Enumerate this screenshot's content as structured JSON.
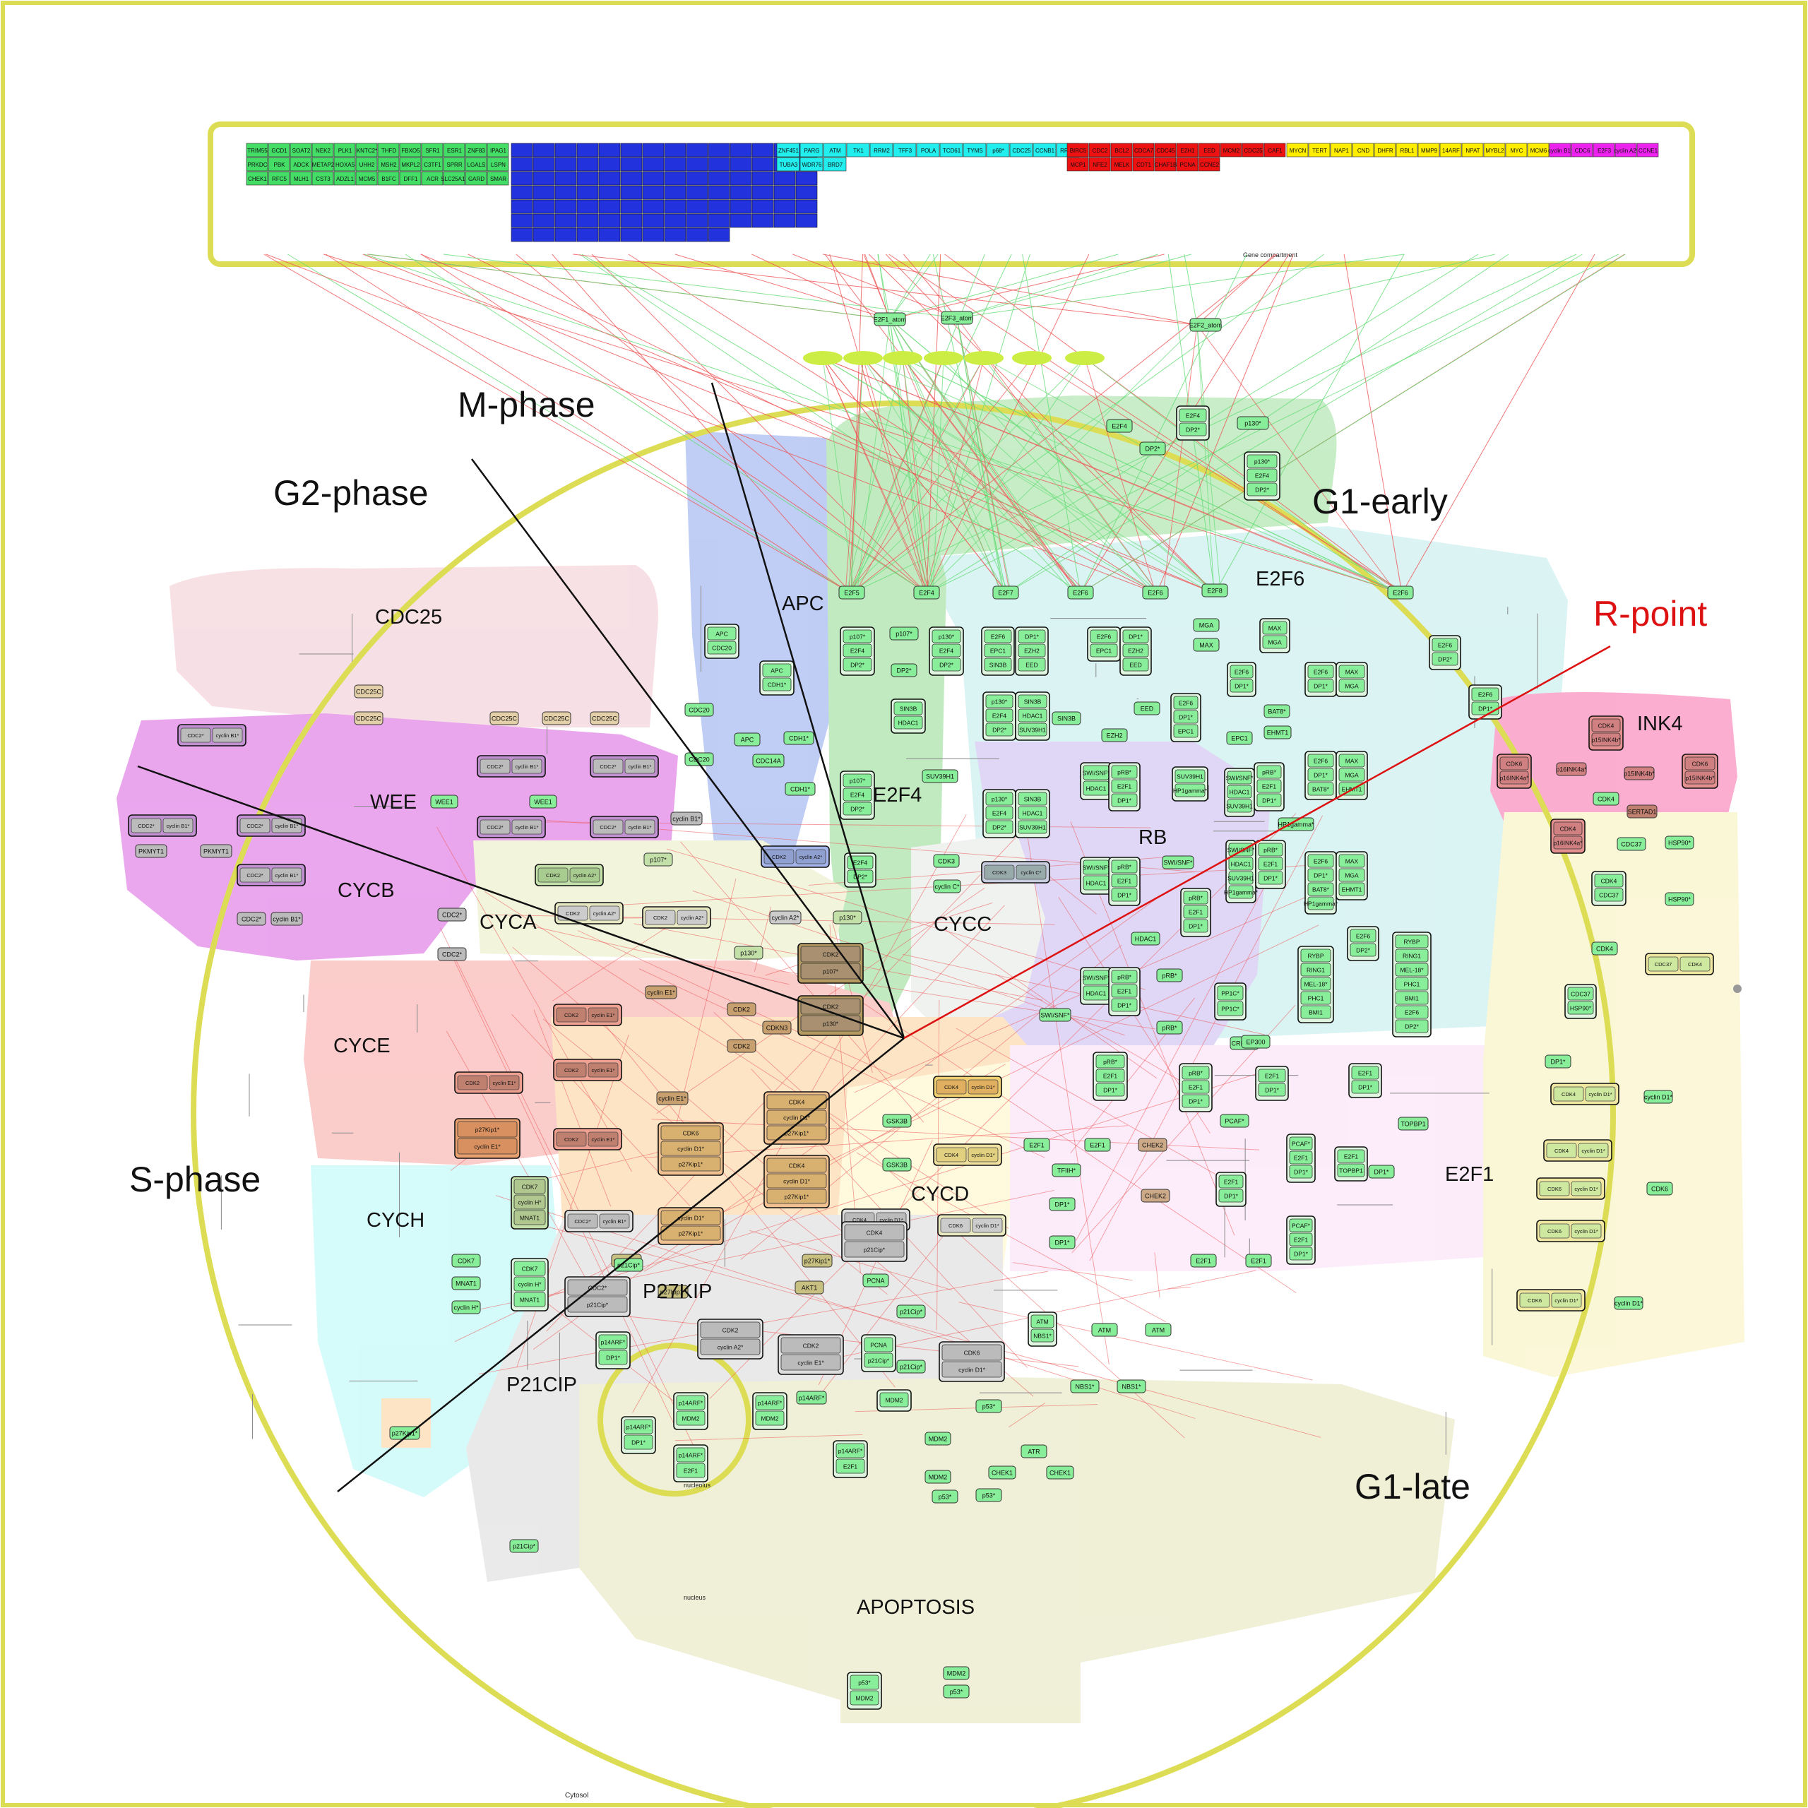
{
  "title": "",
  "compartments": {
    "gene": "Gene compartment",
    "cytosol": "Cytosol",
    "nucleus": "nucleus",
    "nucleolus": "nucleolus"
  },
  "phases": {
    "m_phase": "M-phase",
    "g2_phase": "G2-phase",
    "g1_early": "G1-early",
    "r_point": "R-point",
    "s_phase": "S-phase",
    "g1_late": "G1-late"
  },
  "modules": {
    "cdc25": "CDC25",
    "apc": "APC",
    "e2f6": "E2F6",
    "ink4": "INK4",
    "wee": "WEE",
    "e2f4": "E2F4",
    "rb": "RB",
    "cycb": "CYCB",
    "cyca": "CYCA",
    "cycc": "CYCC",
    "cyce": "CYCE",
    "cycd": "CYCD",
    "e2f1": "E2F1",
    "cych": "CYCH",
    "p27kip": "P27KIP",
    "p21cip": "P21CIP",
    "apoptosis": "APOPTOSIS"
  },
  "gene_rows": {
    "green": [
      "TRIM55",
      "GCD1",
      "SOAT2",
      "NEK2",
      "PLK1",
      "KNTC2*",
      "THFD",
      "FBXO5",
      "SFR1",
      "ESR1",
      "ZNF83",
      "IPAG1",
      "PRKDC",
      "PBK",
      "ADCK",
      "METAP2",
      "HOXA5",
      "UHH2",
      "MSH2",
      "MKPL2",
      "C3TF1",
      "SPRR",
      "LGALS",
      "LSPN",
      "CHEK1",
      "RFC5",
      "MLH1",
      "CST3",
      "ADZL1",
      "MCM5",
      "B1FC",
      "DFF1",
      "ACR",
      "SLC25A16",
      "GARD",
      "SMAR"
    ],
    "cyan": [
      "ZNF451",
      "PARG",
      "ATM",
      "TK1",
      "RRM2",
      "TFF3",
      "POLA",
      "TCD61",
      "TYMS",
      "p68*",
      "CDC25",
      "CCNB1",
      "RRM1",
      "TUBA3",
      "WDR76",
      "BRD7"
    ],
    "red": [
      "BIRC5",
      "CDC2",
      "BCL2",
      "CDCA7",
      "CDC45",
      "E2H1",
      "EED",
      "MCM2",
      "CDC25",
      "CAF1",
      "MCP1",
      "NFE2",
      "MELK",
      "CDT1",
      "CHAF1B",
      "PCNA",
      "CCNE2"
    ],
    "yellow": [
      "MYCN",
      "TERT",
      "NAP1",
      "CND",
      "DHFR",
      "RBL1",
      "MMP9",
      "14ARF",
      "NPAT",
      "MYBL2",
      "MYC",
      "MCM6"
    ],
    "magenta": [
      "cyclin B1*",
      "CDC6",
      "E2F3",
      "cyclin A2*",
      "CCNE1"
    ]
  },
  "nodes": {
    "e2f1_atom": "E2F1_atom",
    "e2f3_atom": "E2F3_atom",
    "e2f2_atom": "E2F2_atom",
    "e2f5": "E2F5",
    "e2f4": "E2F4",
    "e2f7": "E2F7",
    "e2f6": "E2F6",
    "e2f8": "E2F8",
    "dp2": "DP2*",
    "p130": "p130*",
    "p107": "p107*",
    "mga": "MGA",
    "max": "MAX",
    "apc": "APC",
    "cdc20": "CDC20",
    "cdh1": "CDH1*",
    "cdc14a": "CDC14A",
    "cdc25c": "CDC25C",
    "cdc2": "CDC2*",
    "cyclin_b1": "cyclin B1*",
    "wee1": "WEE1",
    "pkmyt1": "PKMYT1",
    "cdk2": "CDK2",
    "cyclin_a2": "cyclin A2*",
    "cyclin_e1": "cyclin E1*",
    "cdk3": "CDK3",
    "cyclin_c": "cyclin C*",
    "cdk4": "CDK4",
    "cdk6": "CDK6",
    "cyclin_d1": "cyclin D1*",
    "cdk7": "CDK7",
    "cyclin_h": "cyclin H*",
    "mnat1": "MNAT1",
    "p27kip1": "p27Kip1*",
    "p21cip": "p21Cip*",
    "p14arf": "p14ARF*",
    "p53": "p53*",
    "mdm2": "MDM2",
    "pcna": "PCNA",
    "gsk3b": "GSK3B",
    "akt1": "AKT1",
    "atm": "ATM",
    "atr": "ATR",
    "nbs1": "NBS1*",
    "chek1": "CHEK1",
    "chek2": "CHEK2",
    "tfiih": "TFIIH*",
    "pcaf": "PCAF*",
    "topbp1": "TOPBP1",
    "e2f1": "E2F1",
    "dp1": "DP1*",
    "prb": "pRB*",
    "hdac1": "HDAC1",
    "suv39h1": "SUV39H1",
    "swisnf": "SWI/SNF*",
    "hp1gamma": "HP1gamma*",
    "pp1c": "PP1C*",
    "crebbp": "CREBBP",
    "ep300": "EP300",
    "epc1": "EPC1",
    "ezh2": "EZH2",
    "eed": "EED",
    "sin3b": "SIN3B",
    "bat8": "BAT8*",
    "ehmt1": "EHMT1",
    "rybp": "RYBP",
    "ring1": "RING1",
    "mel18": "MEL-18*",
    "phc1": "PHC1",
    "bmi1": "BMI1",
    "p15ink4b": "p15INK4b*",
    "p16ink4a": "p16INK4a*",
    "sertad1": "SERTAD1",
    "cdc37": "CDC37",
    "hsp90": "HSP90*",
    "cdkn3": "CDKN3"
  },
  "colors": {
    "border_yellow": "#dddd55",
    "gene_green": "#44dd66",
    "gene_blue": "#2233dd",
    "gene_cyan": "#22eeee",
    "gene_red": "#ee1111",
    "gene_yellow": "#ffee00",
    "gene_magenta": "#ee22ee",
    "node_green": "#88ee99",
    "edge_red": "#ee5555",
    "edge_green": "#66dd77",
    "r_point": "#dd1111"
  }
}
